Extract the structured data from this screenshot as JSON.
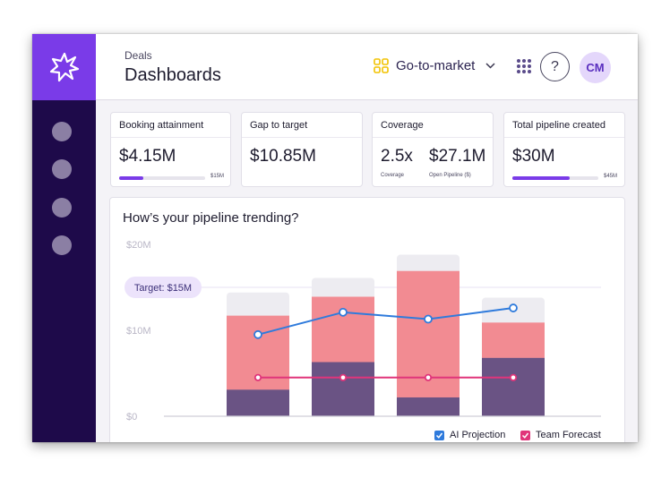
{
  "header": {
    "breadcrumb": "Deals",
    "title": "Dashboards",
    "workspace": "Go-to-market",
    "help_label": "?",
    "avatar_initials": "CM"
  },
  "colors": {
    "sidebar": "#1e0a4a",
    "logo_bg": "#7a3be8",
    "accent": "#7a3be8",
    "workspace_icon": "#f2c200",
    "ai_projection": "#2f7bdc",
    "team_forecast": "#e0357a",
    "bar_committed": "#6a5384",
    "bar_pipeline": "#f28b92",
    "bar_remaining": "#edecf1"
  },
  "icons": {
    "logo": "starburst-logo-icon",
    "workspace": "four-squares-icon",
    "apps": "apps-grid-icon",
    "chevron": "chevron-down-icon",
    "checkbox": "checkbox-checked-icon"
  },
  "sidebar": {
    "nav_items": 4
  },
  "cards": {
    "booking": {
      "title": "Booking attainment",
      "value": "$4.15M",
      "max_label": "$15M",
      "progress": 0.28
    },
    "gap": {
      "title": "Gap to target",
      "value": "$10.85M"
    },
    "coverage": {
      "title": "Coverage",
      "ratio": "2.5x",
      "ratio_label": "Coverage",
      "pipeline": "$27.1M",
      "pipeline_label": "Open Pipeline ($)"
    },
    "total": {
      "title": "Total pipeline created",
      "value": "$30M",
      "max_label": "$45M",
      "progress": 0.667
    }
  },
  "chart": {
    "title": "How’s your pipeline trending?"
  },
  "chart_data": {
    "type": "bar",
    "title": "How’s your pipeline trending?",
    "ylim": [
      0,
      20
    ],
    "y_ticks": [
      {
        "value": 0,
        "label": "$0"
      },
      {
        "value": 10,
        "label": "$10M"
      },
      {
        "value": 20,
        "label": "$20M"
      }
    ],
    "target": {
      "value": 15,
      "label": "Target: $15M"
    },
    "categories": [
      "",
      "",
      "",
      ""
    ],
    "series": [
      {
        "kind": "bar",
        "values": [
          3.1,
          6.3,
          2.2,
          6.8
        ]
      },
      {
        "kind": "bar",
        "values": [
          8.6,
          7.6,
          14.7,
          4.1
        ]
      },
      {
        "kind": "bar",
        "values": [
          2.7,
          2.2,
          1.9,
          2.9
        ]
      }
    ],
    "lines": [
      {
        "name": "AI Projection",
        "values": [
          9.5,
          12.1,
          11.3,
          12.6
        ]
      },
      {
        "name": "Team Forecast",
        "values": [
          4.5,
          4.5,
          4.5,
          4.5
        ]
      }
    ],
    "legend_placement": "bottom-right",
    "grid": false
  }
}
